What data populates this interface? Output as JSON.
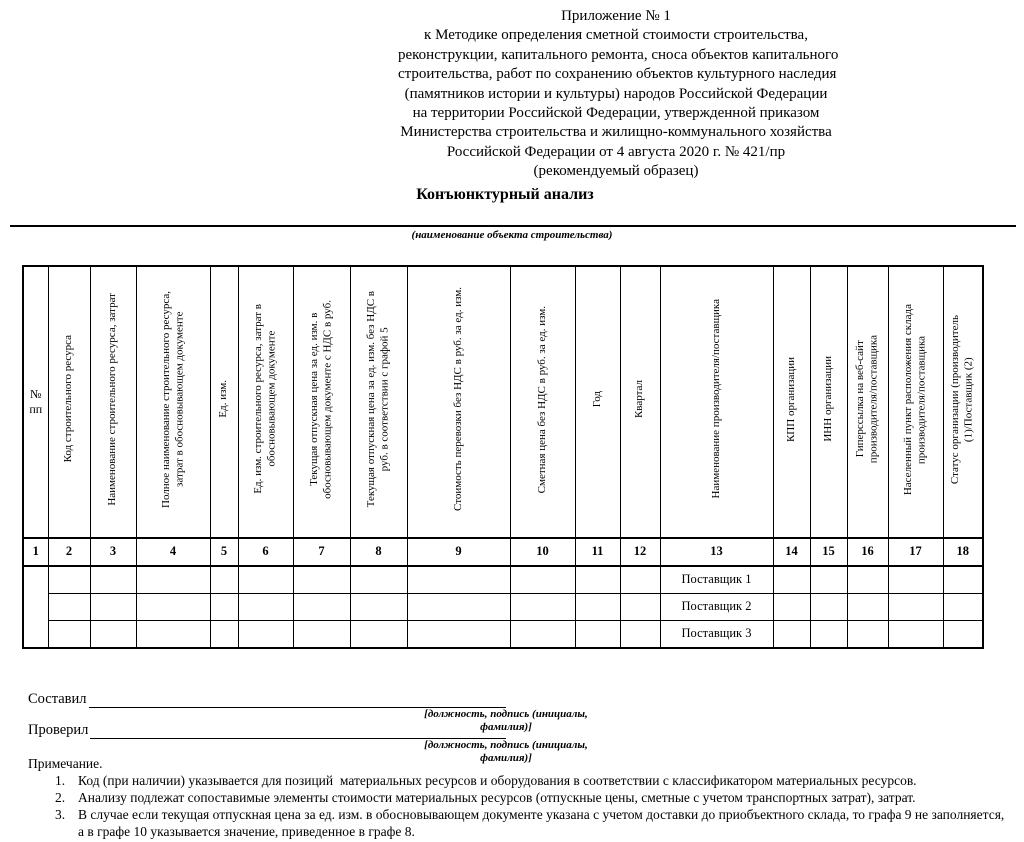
{
  "page": {
    "background": "#ffffff",
    "text_color": "#000000"
  },
  "appendix_header": {
    "lines": [
      "Приложение № 1",
      "к Методике определения сметной стоимости строительства,",
      "реконструкции, капитального ремонта, сноса объектов капитального",
      "строительства, работ по сохранению объектов культурного наследия",
      "(памятников истории и культуры) народов Российской Федерации",
      "на территории Российской Федерации, утвержденной приказом",
      "Министерства строительства и жилищно-коммунального хозяйства",
      "Российской Федерации от 4 августа 2020 г. № 421/пр",
      "(рекомендуемый образец)"
    ]
  },
  "title": "Конъюнктурный анализ",
  "object_line_caption": "(наименование объекта строительства)",
  "table": {
    "columns": [
      {
        "num": "1",
        "label": "№\nпп",
        "rotated": false
      },
      {
        "num": "2",
        "label": "Код строительного ресурса",
        "rotated": true
      },
      {
        "num": "3",
        "label": "Наименование строительного ресурса, затрат",
        "rotated": true
      },
      {
        "num": "4",
        "label": "Полное наименование строительного ресурса,\nзатрат в обосновывающем документе",
        "rotated": true
      },
      {
        "num": "5",
        "label": "Ед. изм.",
        "rotated": true
      },
      {
        "num": "6",
        "label": "Ед. изм. строительного ресурса, затрат в\nобосновывающем документе",
        "rotated": true
      },
      {
        "num": "7",
        "label": "Текущая отпускная цена за ед. изм. в\nобосновывающем документе с НДС в руб.",
        "rotated": true
      },
      {
        "num": "8",
        "label": "Текущая отпускная цена за ед. изм. без НДС в\nруб. в соответствии с графой 5",
        "rotated": true
      },
      {
        "num": "9",
        "label": "Стоимость перевозки без НДС в руб. за ед. изм.",
        "rotated": true
      },
      {
        "num": "10",
        "label": "Сметная цена без НДС в руб. за ед. изм.",
        "rotated": true
      },
      {
        "num": "11",
        "label": "Год",
        "rotated": true
      },
      {
        "num": "12",
        "label": "Квартал",
        "rotated": true
      },
      {
        "num": "13",
        "label": "Наименование производителя/поставщика",
        "rotated": true
      },
      {
        "num": "14",
        "label": "КПП организации",
        "rotated": true
      },
      {
        "num": "15",
        "label": "ИНН организации",
        "rotated": true
      },
      {
        "num": "16",
        "label": "Гиперссылка на веб-сайт\nпроизводителя/поставщика",
        "rotated": true
      },
      {
        "num": "17",
        "label": "Населенный пункт расположения склада\nпроизводителя/поставщика",
        "rotated": true
      },
      {
        "num": "18",
        "label": "Статус организации (производитель\n(1)/Поставщик (2)",
        "rotated": true
      }
    ],
    "supplier_column_num": "13",
    "data_rows": [
      {
        "supplier": "Поставщик 1"
      },
      {
        "supplier": "Поставщик 2"
      },
      {
        "supplier": "Поставщик 3"
      }
    ]
  },
  "signatures": [
    {
      "label": "Составил",
      "caption": "[должность, подпись (инициалы, фамилия)]"
    },
    {
      "label": "Проверил",
      "caption": "[должность, подпись (инициалы, фамилия)]"
    }
  ],
  "notes": {
    "title": "Примечание.",
    "items": [
      {
        "num": "1.",
        "text": "Код (при наличии) указывается для позиций  материальных ресурсов и оборудования в соответствии с классификатором материальных ресурсов."
      },
      {
        "num": "2.",
        "text": "Анализу подлежат сопоставимые элементы стоимости материальных ресурсов (отпускные цены, сметные с учетом транспортных затрат), затрат."
      },
      {
        "num": "3.",
        "text": "В случае если текущая отпускная цена за ед. изм. в обосновывающем документе указана с учетом доставки до приобъектного склада, то графа 9 не заполняется,\nа в графе 10 указывается значение, приведенное в графе 8."
      }
    ]
  }
}
